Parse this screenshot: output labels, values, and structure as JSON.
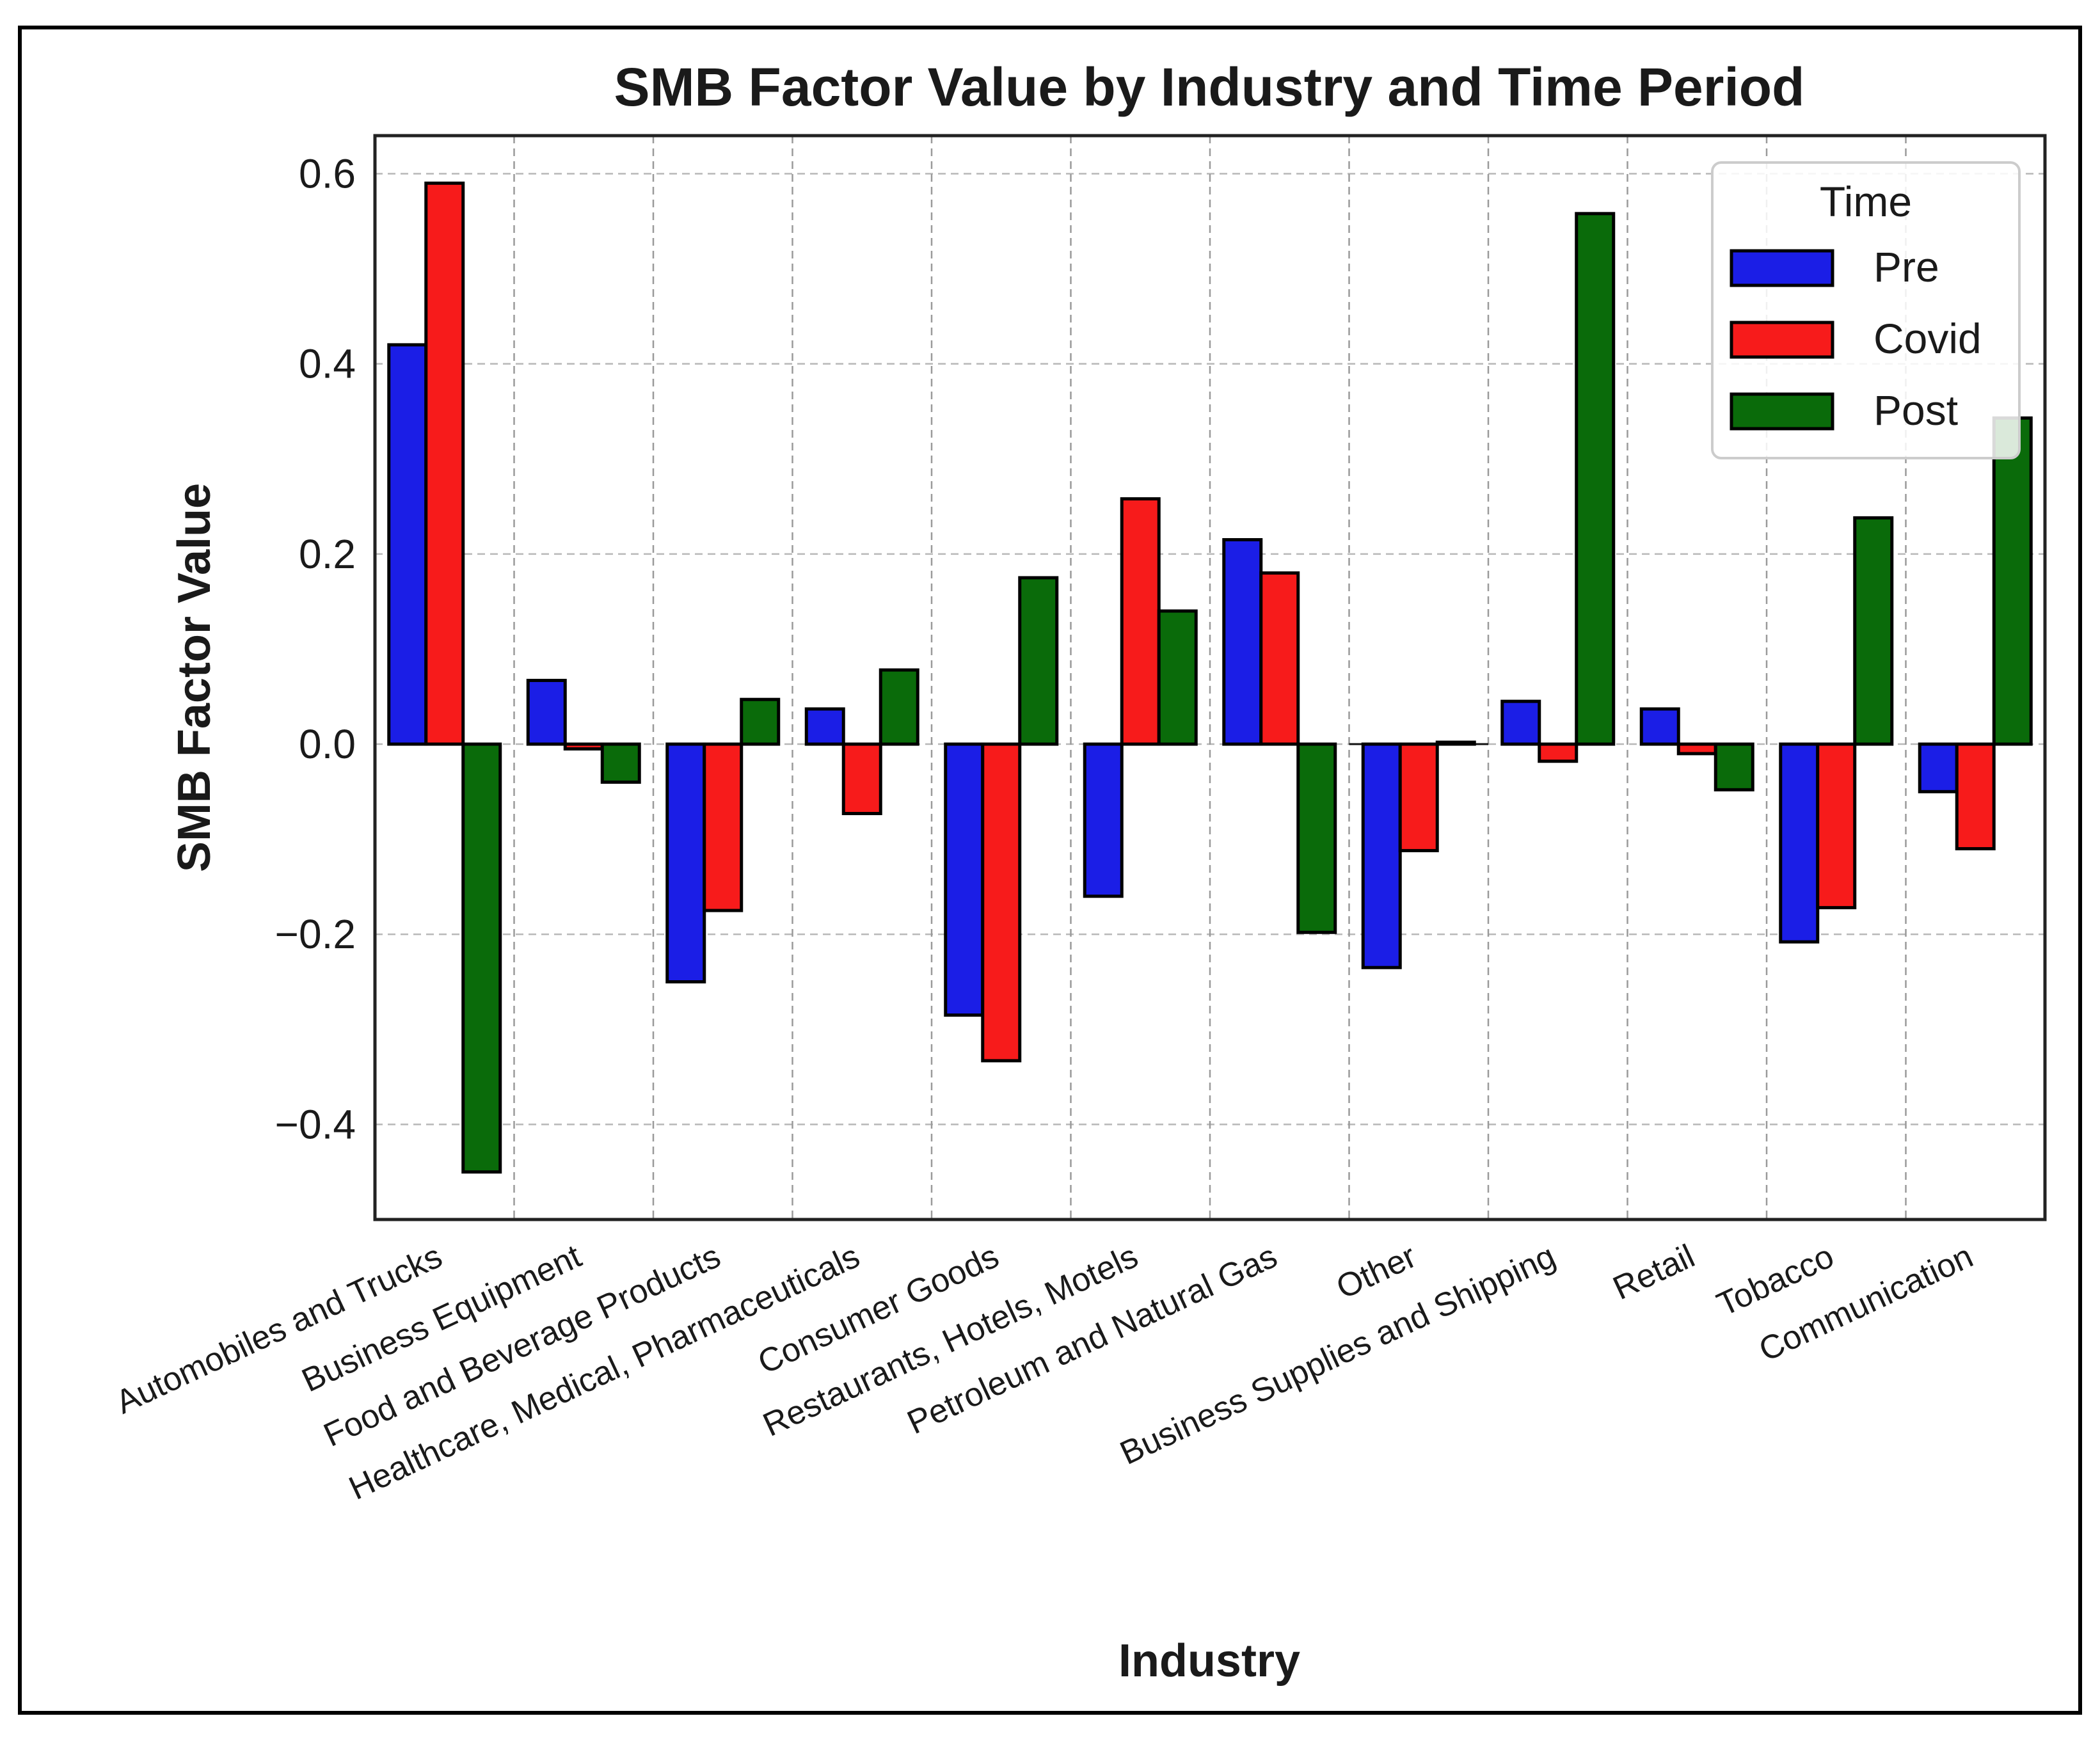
{
  "chart_data": {
    "type": "bar",
    "title": "SMB Factor Value by Industry and Time Period",
    "xlabel": "Industry",
    "ylabel": "SMB Factor Value",
    "ylim": [
      -0.5,
      0.64
    ],
    "yticks": [
      -0.4,
      -0.2,
      0.0,
      0.2,
      0.4,
      0.6
    ],
    "ytick_labels": [
      "−0.4",
      "−0.2",
      "0.0",
      "0.2",
      "0.4",
      "0.6"
    ],
    "grid": true,
    "legend_position": "top-right",
    "legend_title": "Time",
    "categories": [
      "Automobiles and Trucks",
      "Business Equipment",
      "Food and Beverage Products",
      "Healthcare, Medical, Pharmaceuticals",
      "Consumer Goods",
      "Restaurants, Hotels, Motels",
      "Petroleum and Natural Gas",
      "Other",
      "Business Supplies and Shipping",
      "Retail",
      "Tobacco",
      "Communication"
    ],
    "series": [
      {
        "name": "Pre",
        "color": "#1b1ee6",
        "values": [
          0.42,
          0.067,
          -0.25,
          0.037,
          -0.285,
          -0.16,
          0.215,
          -0.235,
          0.045,
          0.037,
          -0.208,
          -0.05
        ]
      },
      {
        "name": "Covid",
        "color": "#f71b1b",
        "values": [
          0.59,
          -0.005,
          -0.175,
          -0.073,
          -0.333,
          0.258,
          0.18,
          -0.112,
          -0.018,
          -0.01,
          -0.172,
          -0.11
        ]
      },
      {
        "name": "Post",
        "color": "#0a6b0a",
        "values": [
          -0.45,
          -0.04,
          0.047,
          0.078,
          0.175,
          0.14,
          -0.198,
          0.002,
          0.558,
          -0.048,
          0.238,
          0.343
        ]
      }
    ]
  }
}
